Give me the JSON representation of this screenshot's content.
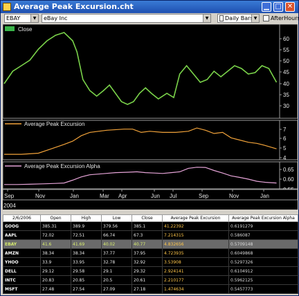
{
  "window": {
    "title": "Average Peak Excursion.cht"
  },
  "toolbar": {
    "symbol": "EBAY",
    "security_name": "eBay Inc",
    "bar_interval": "Daily Bars",
    "after_hours_label": "AfterHours",
    "after_hours_checked": false
  },
  "colors": {
    "close_line": "#7ad34a",
    "ape_line": "#f2a33a",
    "alpha_line": "#e6a4d8",
    "background": "#000000"
  },
  "chart_data": [
    {
      "type": "line",
      "legend": [
        "Close"
      ],
      "yaxis_ticks": [
        "60",
        "55",
        "50",
        "45",
        "40",
        "35",
        "30"
      ],
      "ylim": [
        28,
        62
      ],
      "x_ticks": [
        "Sep",
        "Nov",
        "Jan",
        "Mar",
        "Apr",
        "Jun",
        "Jul",
        "Sep",
        "Nov",
        "Jan"
      ],
      "series": [
        {
          "name": "Close",
          "points": [
            [
              0,
              40.5
            ],
            [
              1,
              45
            ],
            [
              2,
              47
            ],
            [
              3,
              49
            ],
            [
              4,
              53
            ],
            [
              5,
              56
            ],
            [
              6,
              58
            ],
            [
              7,
              59
            ],
            [
              8,
              56
            ],
            [
              8.5,
              52
            ],
            [
              9.2,
              42
            ],
            [
              10,
              38
            ],
            [
              10.8,
              36
            ],
            [
              11.6,
              38
            ],
            [
              12.3,
              40
            ],
            [
              13,
              37
            ],
            [
              13.7,
              34
            ],
            [
              14.4,
              33
            ],
            [
              15.1,
              34
            ],
            [
              15.8,
              37
            ],
            [
              16.5,
              39
            ],
            [
              17.2,
              37
            ],
            [
              18,
              35
            ],
            [
              19,
              37
            ],
            [
              19.8,
              35.5
            ],
            [
              20.5,
              44
            ],
            [
              21.3,
              47
            ],
            [
              22.1,
              44
            ],
            [
              22.9,
              41
            ],
            [
              23.7,
              42
            ],
            [
              24.5,
              45
            ],
            [
              25.3,
              43
            ],
            [
              26.1,
              45
            ],
            [
              26.9,
              47
            ],
            [
              27.7,
              46
            ],
            [
              28.5,
              44
            ],
            [
              29.3,
              44.5
            ],
            [
              30.1,
              47
            ],
            [
              30.9,
              46
            ],
            [
              31.8,
              41
            ]
          ]
        }
      ]
    },
    {
      "type": "line",
      "legend": [
        "Average Peak Excursion"
      ],
      "yaxis_ticks": [
        "7",
        "6",
        "5",
        "4"
      ],
      "ylim": [
        3.8,
        7.4
      ],
      "series": [
        {
          "name": "Average Peak Excursion",
          "points": [
            [
              0,
              4.3
            ],
            [
              2,
              4.3
            ],
            [
              4,
              4.4
            ],
            [
              5.5,
              4.8
            ],
            [
              7,
              5.2
            ],
            [
              8,
              5.5
            ],
            [
              9,
              6
            ],
            [
              10,
              6.3
            ],
            [
              12,
              6.5
            ],
            [
              14,
              6.6
            ],
            [
              15,
              6.6
            ],
            [
              16,
              6.3
            ],
            [
              17,
              6.4
            ],
            [
              18.5,
              6.3
            ],
            [
              20,
              6.3
            ],
            [
              21.5,
              6.4
            ],
            [
              22.5,
              6.7
            ],
            [
              23.5,
              6.5
            ],
            [
              24.5,
              6.2
            ],
            [
              25.5,
              6.3
            ],
            [
              26.5,
              5.8
            ],
            [
              27.5,
              5.6
            ],
            [
              28.5,
              5.4
            ],
            [
              29.5,
              5.3
            ],
            [
              30.5,
              5.1
            ],
            [
              31.8,
              4.8
            ]
          ]
        }
      ]
    },
    {
      "type": "line",
      "legend": [
        "Average Peak Excursion Alpha"
      ],
      "yaxis_ticks": [
        "0.65",
        "0.60",
        "0.55"
      ],
      "ylim": [
        0.545,
        0.67
      ],
      "series": [
        {
          "name": "Average Peak Excursion Alpha",
          "points": [
            [
              0,
              0.565
            ],
            [
              1.5,
              0.565
            ],
            [
              3,
              0.566
            ],
            [
              4.5,
              0.568
            ],
            [
              6,
              0.57
            ],
            [
              7,
              0.572
            ],
            [
              8,
              0.585
            ],
            [
              9,
              0.6
            ],
            [
              10,
              0.61
            ],
            [
              11.5,
              0.615
            ],
            [
              13,
              0.62
            ],
            [
              14.5,
              0.622
            ],
            [
              15.5,
              0.624
            ],
            [
              16.5,
              0.62
            ],
            [
              17.5,
              0.618
            ],
            [
              18.5,
              0.616
            ],
            [
              19.5,
              0.62
            ],
            [
              20.5,
              0.624
            ],
            [
              21.5,
              0.64
            ],
            [
              22.5,
              0.645
            ],
            [
              23.5,
              0.644
            ],
            [
              24.5,
              0.63
            ],
            [
              25.5,
              0.618
            ],
            [
              26.5,
              0.605
            ],
            [
              27.5,
              0.598
            ],
            [
              28.5,
              0.59
            ],
            [
              29.5,
              0.58
            ],
            [
              30.5,
              0.575
            ],
            [
              31.8,
              0.572
            ]
          ]
        }
      ]
    }
  ],
  "x_axis": {
    "ticks": [
      "Sep",
      "Nov",
      "Jan",
      "Mar",
      "Apr",
      "Jun",
      "Jul",
      "Sep",
      "Nov",
      "Jan"
    ],
    "year_label": "2004"
  },
  "table": {
    "columns": [
      "2/6/2006",
      "Open",
      "High",
      "Low",
      "Close",
      "Average Peak Excursion",
      "Average Peak Excursion Alpha"
    ],
    "rows": [
      {
        "sym": "GOOG",
        "open": "385.31",
        "high": "389.9",
        "low": "379.56",
        "close": "385.1",
        "ape": "41.22392",
        "alpha": "0.6191279"
      },
      {
        "sym": "AAPL",
        "open": "72.02",
        "high": "72.51",
        "low": "66.74",
        "close": "67.3",
        "ape": "7.214315",
        "alpha": "0.586087"
      },
      {
        "sym": "EBAY",
        "open": "41.6",
        "high": "41.69",
        "low": "40.02",
        "close": "40.77",
        "ape": "4.832656",
        "alpha": "0.5709148"
      },
      {
        "sym": "AMZN",
        "open": "38.34",
        "high": "38.34",
        "low": "37.77",
        "close": "37.95",
        "ape": "4.723935",
        "alpha": "0.6049868"
      },
      {
        "sym": "YHOO",
        "open": "33.9",
        "high": "33.95",
        "low": "32.78",
        "close": "32.92",
        "ape": "3.53908",
        "alpha": "0.5297326"
      },
      {
        "sym": "DELL",
        "open": "29.12",
        "high": "29.58",
        "low": "29.1",
        "close": "29.32",
        "ape": "2.924141",
        "alpha": "0.6104912"
      },
      {
        "sym": "INTC",
        "open": "20.83",
        "high": "20.85",
        "low": "20.5",
        "close": "20.61",
        "ape": "2.210177",
        "alpha": "0.5962125"
      },
      {
        "sym": "MSFT",
        "open": "27.48",
        "high": "27.54",
        "low": "27.09",
        "close": "27.18",
        "ape": "1.474634",
        "alpha": "0.5457773"
      }
    ],
    "highlighted_row": 2
  }
}
